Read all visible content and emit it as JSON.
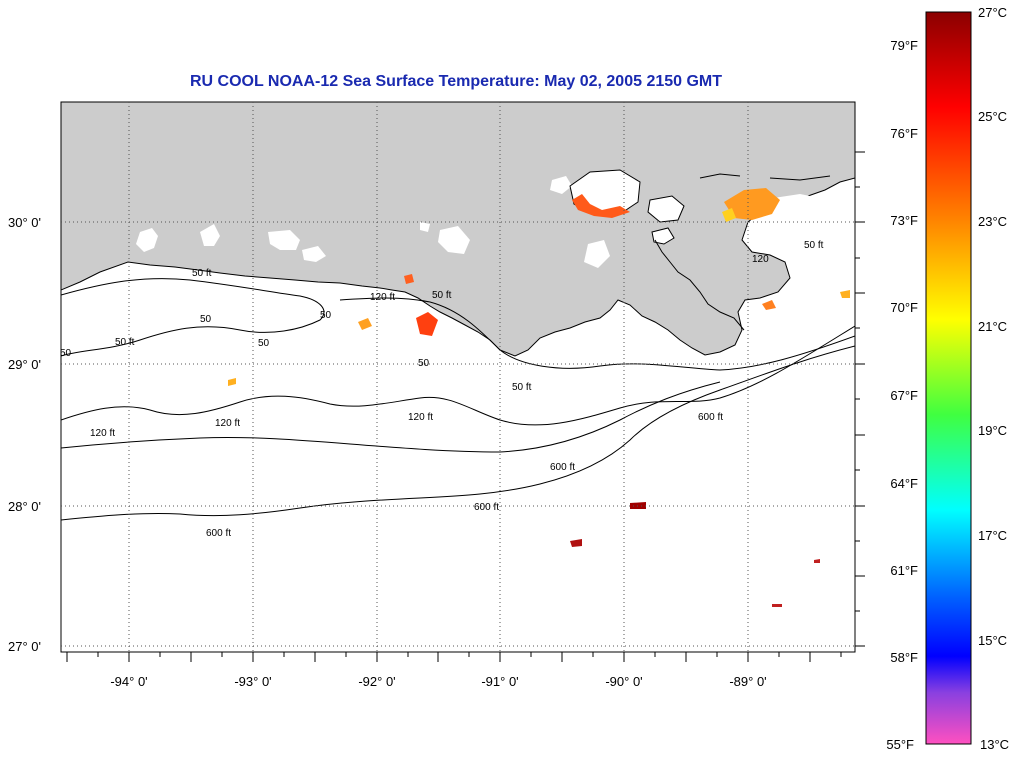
{
  "title": "RU COOL  NOAA-12  Sea Surface Temperature:  May 02, 2005 2150 GMT",
  "axes": {
    "longitude_labels": [
      "-94° 0'",
      "-93° 0'",
      "-92° 0'",
      "-91° 0'",
      "-90° 0'",
      "-89° 0'"
    ],
    "latitude_labels": [
      "30° 0'",
      "29° 0'",
      "28° 0'",
      "27° 0'"
    ]
  },
  "contour_labels": {
    "c50": "50 ft",
    "c120": "120 ft",
    "c600": "600 ft",
    "c50b": "50",
    "c120b": "120"
  },
  "colorbar": {
    "fahrenheit": [
      "79°F",
      "76°F",
      "73°F",
      "70°F",
      "67°F",
      "64°F",
      "61°F",
      "58°F",
      "55°F"
    ],
    "celsius": [
      "27°C",
      "25°C",
      "23°C",
      "21°C",
      "19°C",
      "17°C",
      "15°C",
      "13°C"
    ],
    "gradient_stops": [
      "#8b0000",
      "#ff0000",
      "#ff7f00",
      "#ffff00",
      "#7fff00",
      "#00ffff",
      "#0080ff",
      "#0000ff",
      "#8a2be2",
      "#ff00ff",
      "#ff69b4"
    ]
  },
  "colors": {
    "land": "#cccccc",
    "title": "#1a2ab0"
  }
}
